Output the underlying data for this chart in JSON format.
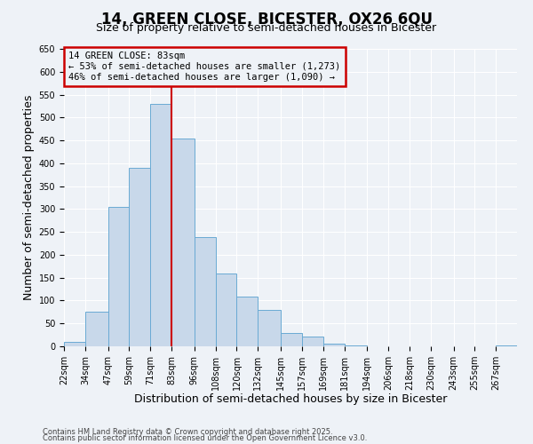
{
  "title": "14, GREEN CLOSE, BICESTER, OX26 6QU",
  "subtitle": "Size of property relative to semi-detached houses in Bicester",
  "xlabel": "Distribution of semi-detached houses by size in Bicester",
  "ylabel": "Number of semi-detached properties",
  "bin_edges": [
    22,
    34,
    47,
    59,
    71,
    83,
    96,
    108,
    120,
    132,
    145,
    157,
    169,
    181,
    194,
    206,
    218,
    230,
    243,
    255,
    267,
    279
  ],
  "bar_heights": [
    10,
    75,
    305,
    390,
    530,
    455,
    238,
    160,
    108,
    80,
    30,
    22,
    5,
    1,
    0,
    0,
    0,
    0,
    0,
    0,
    1
  ],
  "bar_color": "#c8d8ea",
  "bar_edgecolor": "#6aaad4",
  "vline_x": 83,
  "vline_color": "#cc0000",
  "ylim": [
    0,
    650
  ],
  "yticks": [
    0,
    50,
    100,
    150,
    200,
    250,
    300,
    350,
    400,
    450,
    500,
    550,
    600,
    650
  ],
  "annotation_line1": "14 GREEN CLOSE: 83sqm",
  "annotation_line2": "← 53% of semi-detached houses are smaller (1,273)",
  "annotation_line3": "46% of semi-detached houses are larger (1,090) →",
  "annotation_box_edgecolor": "#cc0000",
  "footer1": "Contains HM Land Registry data © Crown copyright and database right 2025.",
  "footer2": "Contains public sector information licensed under the Open Government Licence v3.0.",
  "background_color": "#eef2f7",
  "grid_color": "#ffffff",
  "tick_label_fontsize": 7,
  "axis_label_fontsize": 9,
  "title_fontsize": 12,
  "subtitle_fontsize": 9
}
